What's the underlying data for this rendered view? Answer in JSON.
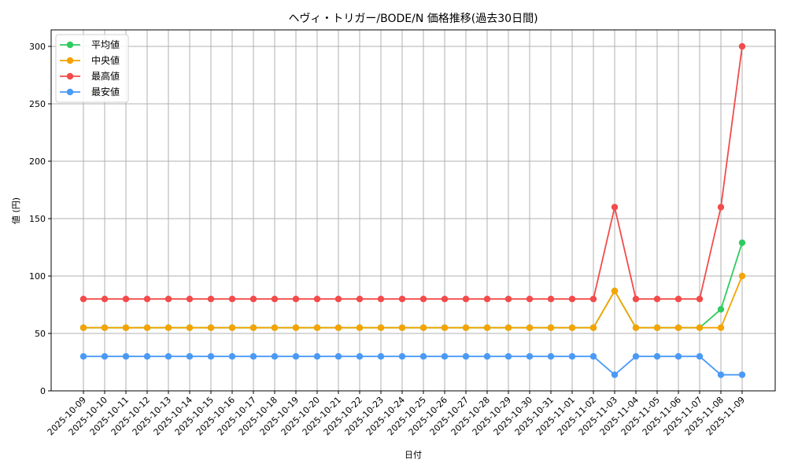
{
  "chart_data": {
    "type": "line",
    "title": "ヘヴィ・トリガー/BODE/N 価格推移(過去30日間)",
    "xlabel": "日付",
    "ylabel": "値 (円)",
    "ylim": [
      0,
      315
    ],
    "yticks": [
      0,
      50,
      100,
      150,
      200,
      250,
      300
    ],
    "grid": true,
    "legend_position": "upper left",
    "x": [
      "2025-10-09",
      "2025-10-10",
      "2025-10-11",
      "2025-10-12",
      "2025-10-13",
      "2025-10-14",
      "2025-10-15",
      "2025-10-16",
      "2025-10-17",
      "2025-10-18",
      "2025-10-19",
      "2025-10-20",
      "2025-10-21",
      "2025-10-22",
      "2025-10-23",
      "2025-10-24",
      "2025-10-25",
      "2025-10-26",
      "2025-10-27",
      "2025-10-28",
      "2025-10-29",
      "2025-10-30",
      "2025-10-31",
      "2025-11-01",
      "2025-11-02",
      "2025-11-03",
      "2025-11-04",
      "2025-11-05",
      "2025-11-06",
      "2025-11-07",
      "2025-11-08",
      "2025-11-09"
    ],
    "series": [
      {
        "name": "平均値",
        "color": "#2ecc5f",
        "values": [
          55,
          55,
          55,
          55,
          55,
          55,
          55,
          55,
          55,
          55,
          55,
          55,
          55,
          55,
          55,
          55,
          55,
          55,
          55,
          55,
          55,
          55,
          55,
          55,
          55,
          87,
          55,
          55,
          55,
          55,
          71,
          129
        ]
      },
      {
        "name": "中央値",
        "color": "#f5a300",
        "values": [
          55,
          55,
          55,
          55,
          55,
          55,
          55,
          55,
          55,
          55,
          55,
          55,
          55,
          55,
          55,
          55,
          55,
          55,
          55,
          55,
          55,
          55,
          55,
          55,
          55,
          87,
          55,
          55,
          55,
          55,
          55,
          100
        ]
      },
      {
        "name": "最高値",
        "color": "#f24b4b",
        "values": [
          80,
          80,
          80,
          80,
          80,
          80,
          80,
          80,
          80,
          80,
          80,
          80,
          80,
          80,
          80,
          80,
          80,
          80,
          80,
          80,
          80,
          80,
          80,
          80,
          80,
          160,
          80,
          80,
          80,
          80,
          160,
          300
        ]
      },
      {
        "name": "最安値",
        "color": "#4a9af5",
        "values": [
          30,
          30,
          30,
          30,
          30,
          30,
          30,
          30,
          30,
          30,
          30,
          30,
          30,
          30,
          30,
          30,
          30,
          30,
          30,
          30,
          30,
          30,
          30,
          30,
          30,
          14,
          30,
          30,
          30,
          30,
          14,
          14
        ]
      }
    ]
  }
}
